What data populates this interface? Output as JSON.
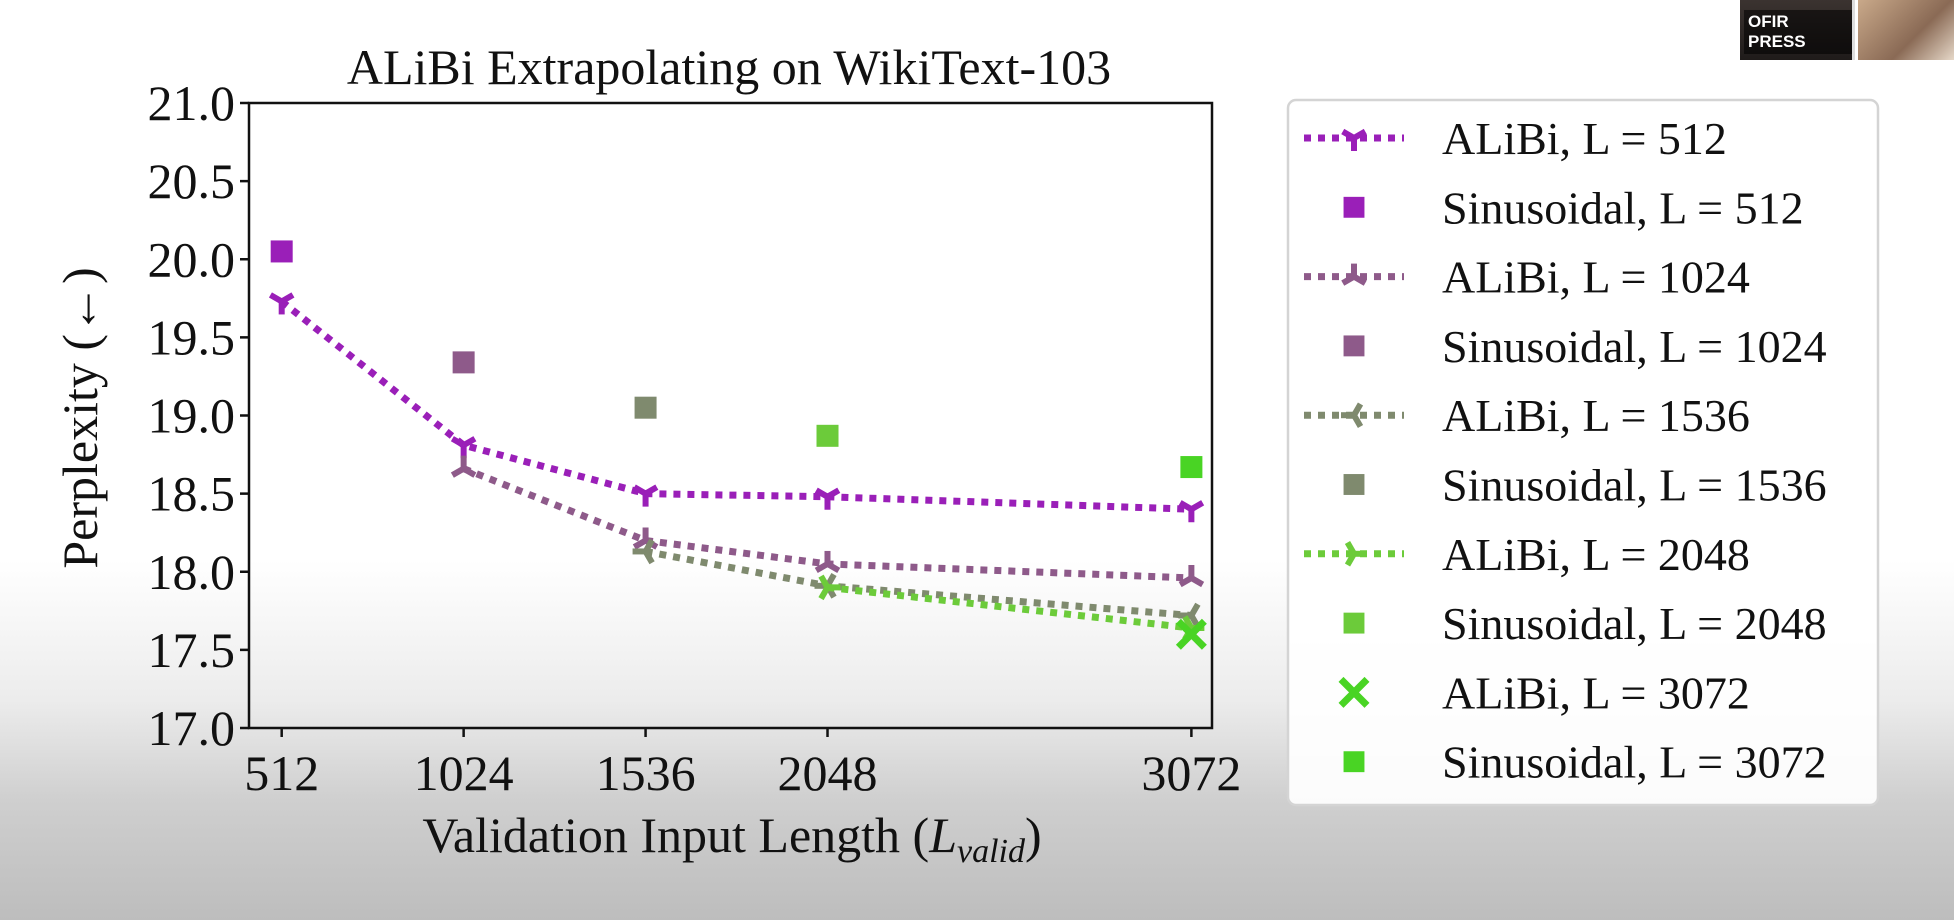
{
  "overlay": {
    "speaker_name": "OFIR PRESS"
  },
  "chart_data": {
    "type": "line",
    "title": "ALiBi Extrapolating on WikiText-103",
    "xlabel_prefix": "Validation Input Length (",
    "xlabel_var": "L",
    "xlabel_sub": "valid",
    "xlabel_suffix": ")",
    "ylabel": "Perplexity (←)",
    "xlim": [
      420,
      3130
    ],
    "ylim": [
      17.0,
      21.0
    ],
    "xticks": [
      "512",
      "1024",
      "1536",
      "2048",
      "3072"
    ],
    "yticks": [
      "17.0",
      "17.5",
      "18.0",
      "18.5",
      "19.0",
      "19.5",
      "20.0",
      "20.5",
      "21.0"
    ],
    "grid": false,
    "legend_position": "outside-right",
    "series": [
      {
        "name": "ALiBi, L = 512",
        "color": "#9a1fb8",
        "marker": "tri_down",
        "style": "dotted",
        "x": [
          512,
          1024,
          1536,
          2048,
          3072
        ],
        "y": [
          19.73,
          18.81,
          18.5,
          18.48,
          18.4
        ]
      },
      {
        "name": "Sinusoidal, L = 512",
        "color": "#9a1fb8",
        "marker": "square",
        "style": "none",
        "x": [
          512
        ],
        "y": [
          20.05
        ]
      },
      {
        "name": "ALiBi, L = 1024",
        "color": "#8e5a8a",
        "marker": "tri_up",
        "style": "dotted",
        "x": [
          1024,
          1536,
          2048,
          3072
        ],
        "y": [
          18.66,
          18.2,
          18.05,
          17.96
        ]
      },
      {
        "name": "Sinusoidal, L = 1024",
        "color": "#8e5a8a",
        "marker": "square",
        "style": "none",
        "x": [
          1024
        ],
        "y": [
          19.34
        ]
      },
      {
        "name": "ALiBi, L = 1536",
        "color": "#7f8a6e",
        "marker": "tri_left",
        "style": "dotted",
        "x": [
          1536,
          2048,
          3072
        ],
        "y": [
          18.13,
          17.91,
          17.72
        ]
      },
      {
        "name": "Sinusoidal, L = 1536",
        "color": "#7f8a6e",
        "marker": "square",
        "style": "none",
        "x": [
          1536
        ],
        "y": [
          19.05
        ]
      },
      {
        "name": "ALiBi, L = 2048",
        "color": "#6ccb3a",
        "marker": "tri_right",
        "style": "dotted",
        "x": [
          2048,
          3072
        ],
        "y": [
          17.9,
          17.64
        ]
      },
      {
        "name": "Sinusoidal, L = 2048",
        "color": "#6ccb3a",
        "marker": "square",
        "style": "none",
        "x": [
          2048
        ],
        "y": [
          18.87
        ]
      },
      {
        "name": "ALiBi, L = 3072",
        "color": "#49d424",
        "marker": "x",
        "style": "none",
        "x": [
          3072
        ],
        "y": [
          17.6
        ]
      },
      {
        "name": "Sinusoidal, L = 3072",
        "color": "#49d424",
        "marker": "square",
        "style": "none",
        "x": [
          3072
        ],
        "y": [
          18.67
        ]
      }
    ]
  }
}
